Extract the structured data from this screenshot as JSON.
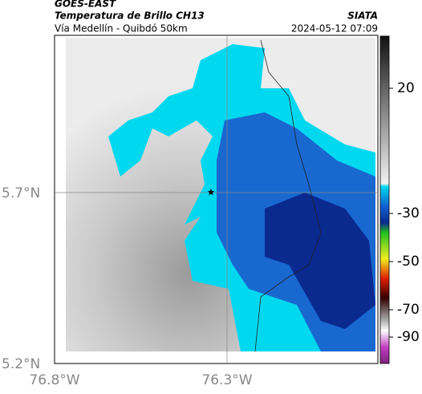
{
  "header": {
    "source": "GOES-EAST",
    "title": "Temperatura de Brillo CH13",
    "credit": "SIATA",
    "subtitle": "Vía Medellín - Quibdó 50km",
    "datetime": "2024-05-12 07:09"
  },
  "map": {
    "lat_labels": [
      "5.7°N",
      "5.2°N"
    ],
    "lon_labels": [
      "76.8°W",
      "76.3°W"
    ]
  },
  "colorbar": {
    "ticks": [
      20,
      -30,
      -50,
      -70,
      -90
    ]
  }
}
